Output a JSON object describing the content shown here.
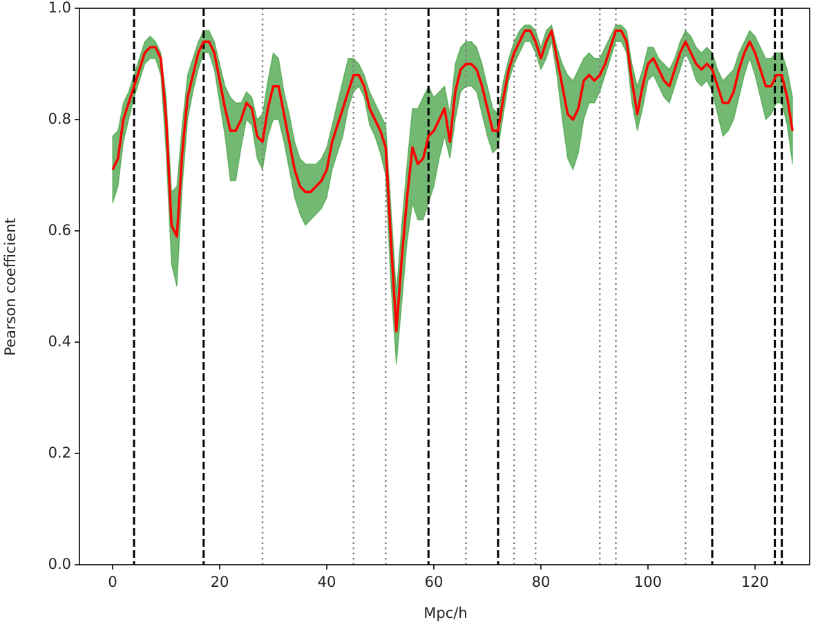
{
  "chart_data": {
    "type": "line",
    "xlabel": "Mpc/h",
    "ylabel": "Pearson coefficient",
    "xlim": [
      -6.2,
      130.2
    ],
    "xticks": [
      0,
      20,
      40,
      60,
      80,
      100,
      120
    ],
    "ylim": [
      0,
      1
    ],
    "yticks": [
      {
        "value": 0,
        "label": "0.0"
      },
      {
        "value": 0.2,
        "label": "0.2"
      },
      {
        "value": 0.4,
        "label": "0.4"
      },
      {
        "value": 0.6,
        "label": "0.6"
      },
      {
        "value": 0.8,
        "label": "0.8"
      },
      {
        "value": 1,
        "label": "1.0"
      }
    ],
    "x": [
      0,
      1,
      2,
      3,
      4,
      5,
      6,
      7,
      8,
      9,
      10,
      11,
      12,
      13,
      14,
      15,
      16,
      17,
      18,
      19,
      20,
      21,
      22,
      23,
      24,
      25,
      26,
      27,
      28,
      29,
      30,
      31,
      32,
      33,
      34,
      35,
      36,
      37,
      38,
      39,
      40,
      41,
      42,
      43,
      44,
      45,
      46,
      47,
      48,
      49,
      50,
      51,
      52,
      53,
      54,
      55,
      56,
      57,
      58,
      59,
      60,
      61,
      62,
      63,
      64,
      65,
      66,
      67,
      68,
      69,
      70,
      71,
      72,
      73,
      74,
      75,
      76,
      77,
      78,
      79,
      80,
      81,
      82,
      83,
      84,
      85,
      86,
      87,
      88,
      89,
      90,
      91,
      92,
      93,
      94,
      95,
      96,
      97,
      98,
      99,
      100,
      101,
      102,
      103,
      104,
      105,
      106,
      107,
      108,
      109,
      110,
      111,
      112,
      113,
      114,
      115,
      116,
      117,
      118,
      119,
      120,
      121,
      122,
      123,
      124,
      125,
      126,
      127
    ],
    "series": [
      {
        "color": "#ff0000",
        "values": [
          0.71,
          0.73,
          0.8,
          0.83,
          0.86,
          0.89,
          0.92,
          0.93,
          0.93,
          0.91,
          0.8,
          0.61,
          0.59,
          0.74,
          0.84,
          0.88,
          0.92,
          0.94,
          0.94,
          0.92,
          0.87,
          0.82,
          0.78,
          0.78,
          0.8,
          0.83,
          0.82,
          0.77,
          0.76,
          0.82,
          0.86,
          0.86,
          0.81,
          0.76,
          0.71,
          0.68,
          0.67,
          0.67,
          0.68,
          0.69,
          0.71,
          0.76,
          0.79,
          0.82,
          0.85,
          0.88,
          0.88,
          0.86,
          0.82,
          0.8,
          0.78,
          0.75,
          0.58,
          0.42,
          0.55,
          0.66,
          0.75,
          0.72,
          0.73,
          0.77,
          0.78,
          0.8,
          0.82,
          0.76,
          0.85,
          0.89,
          0.9,
          0.9,
          0.89,
          0.86,
          0.82,
          0.78,
          0.78,
          0.84,
          0.89,
          0.92,
          0.94,
          0.96,
          0.96,
          0.94,
          0.91,
          0.94,
          0.96,
          0.91,
          0.86,
          0.81,
          0.8,
          0.82,
          0.87,
          0.88,
          0.87,
          0.88,
          0.9,
          0.93,
          0.96,
          0.96,
          0.94,
          0.87,
          0.81,
          0.86,
          0.9,
          0.91,
          0.89,
          0.87,
          0.86,
          0.89,
          0.92,
          0.94,
          0.92,
          0.9,
          0.89,
          0.9,
          0.89,
          0.86,
          0.83,
          0.83,
          0.85,
          0.89,
          0.92,
          0.94,
          0.92,
          0.89,
          0.86,
          0.86,
          0.88,
          0.88,
          0.84,
          0.78
        ]
      }
    ],
    "band": {
      "color": "#008000",
      "upper": [
        0.77,
        0.78,
        0.83,
        0.85,
        0.88,
        0.91,
        0.94,
        0.95,
        0.94,
        0.92,
        0.84,
        0.67,
        0.68,
        0.79,
        0.88,
        0.91,
        0.94,
        0.96,
        0.96,
        0.94,
        0.9,
        0.86,
        0.84,
        0.83,
        0.83,
        0.85,
        0.84,
        0.8,
        0.81,
        0.87,
        0.92,
        0.91,
        0.85,
        0.81,
        0.76,
        0.73,
        0.72,
        0.72,
        0.72,
        0.73,
        0.75,
        0.79,
        0.83,
        0.87,
        0.91,
        0.91,
        0.9,
        0.88,
        0.85,
        0.83,
        0.81,
        0.79,
        0.64,
        0.49,
        0.61,
        0.72,
        0.82,
        0.82,
        0.84,
        0.86,
        0.84,
        0.85,
        0.86,
        0.81,
        0.9,
        0.93,
        0.94,
        0.94,
        0.93,
        0.9,
        0.86,
        0.82,
        0.81,
        0.87,
        0.91,
        0.94,
        0.96,
        0.97,
        0.97,
        0.96,
        0.93,
        0.96,
        0.97,
        0.93,
        0.9,
        0.88,
        0.87,
        0.89,
        0.91,
        0.92,
        0.91,
        0.91,
        0.93,
        0.95,
        0.97,
        0.97,
        0.96,
        0.9,
        0.86,
        0.89,
        0.93,
        0.93,
        0.91,
        0.9,
        0.89,
        0.91,
        0.94,
        0.96,
        0.95,
        0.93,
        0.92,
        0.93,
        0.92,
        0.89,
        0.87,
        0.88,
        0.89,
        0.92,
        0.94,
        0.96,
        0.95,
        0.93,
        0.91,
        0.91,
        0.92,
        0.92,
        0.89,
        0.84
      ],
      "lower": [
        0.65,
        0.68,
        0.76,
        0.8,
        0.84,
        0.87,
        0.9,
        0.91,
        0.91,
        0.88,
        0.74,
        0.54,
        0.5,
        0.68,
        0.8,
        0.85,
        0.89,
        0.92,
        0.92,
        0.89,
        0.83,
        0.77,
        0.69,
        0.69,
        0.75,
        0.8,
        0.79,
        0.73,
        0.71,
        0.77,
        0.8,
        0.8,
        0.76,
        0.71,
        0.66,
        0.63,
        0.61,
        0.62,
        0.63,
        0.64,
        0.66,
        0.71,
        0.74,
        0.77,
        0.82,
        0.85,
        0.86,
        0.84,
        0.79,
        0.77,
        0.74,
        0.7,
        0.5,
        0.36,
        0.47,
        0.58,
        0.65,
        0.62,
        0.62,
        0.65,
        0.68,
        0.73,
        0.77,
        0.73,
        0.8,
        0.85,
        0.86,
        0.86,
        0.85,
        0.81,
        0.77,
        0.74,
        0.75,
        0.81,
        0.87,
        0.9,
        0.92,
        0.94,
        0.94,
        0.92,
        0.89,
        0.91,
        0.94,
        0.88,
        0.8,
        0.73,
        0.71,
        0.74,
        0.8,
        0.83,
        0.83,
        0.85,
        0.88,
        0.91,
        0.94,
        0.94,
        0.92,
        0.83,
        0.78,
        0.82,
        0.87,
        0.88,
        0.86,
        0.84,
        0.83,
        0.86,
        0.89,
        0.92,
        0.9,
        0.87,
        0.86,
        0.87,
        0.85,
        0.81,
        0.77,
        0.78,
        0.8,
        0.84,
        0.88,
        0.91,
        0.88,
        0.84,
        0.8,
        0.81,
        0.83,
        0.83,
        0.79,
        0.72
      ]
    },
    "vlines": [
      {
        "style": "dashed",
        "color": "#000000",
        "x": [
          4,
          17,
          59,
          72,
          112,
          123.7,
          125
        ]
      },
      {
        "style": "dotted",
        "color": "#808080",
        "x": [
          28,
          45,
          51,
          66,
          75,
          79,
          91,
          94,
          107
        ]
      }
    ]
  }
}
